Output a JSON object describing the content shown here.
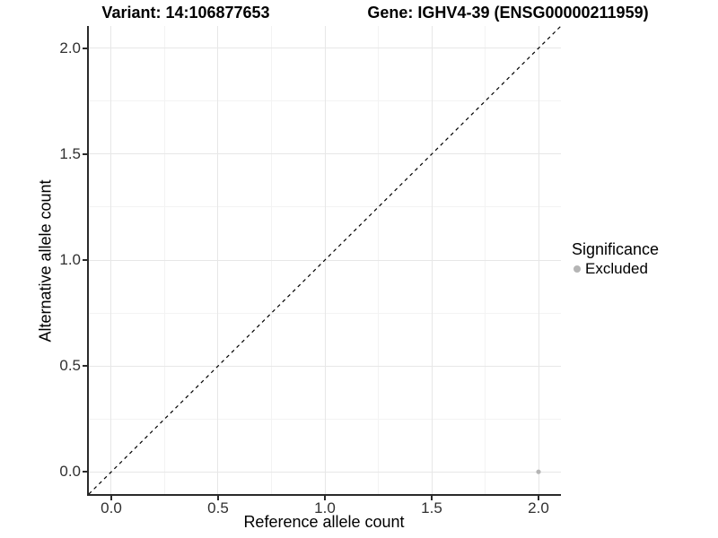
{
  "header": {
    "variant_title": "Variant: 14:106877653",
    "gene_title": "Gene: IGHV4-39 (ENSG00000211959)"
  },
  "axes": {
    "x": {
      "title": "Reference allele count",
      "tick_labels": [
        "0.0",
        "0.5",
        "1.0",
        "1.5",
        "2.0"
      ],
      "tick_values": [
        0,
        0.5,
        1,
        1.5,
        2
      ],
      "lim": [
        -0.105,
        2.105
      ]
    },
    "y": {
      "title": "Alternative allele count",
      "tick_labels": [
        "0.0",
        "0.5",
        "1.0",
        "1.5",
        "2.0"
      ],
      "tick_values": [
        0,
        0.5,
        1,
        1.5,
        2
      ],
      "lim": [
        -0.105,
        2.105
      ]
    }
  },
  "legend": {
    "title": "Significance",
    "items": [
      {
        "label": "Excluded",
        "color": "#b5b5b5",
        "marker": "circle"
      }
    ]
  },
  "colors": {
    "background": "#ffffff",
    "grid_major": "#e7e7e7",
    "grid_minor": "#f3f3f3",
    "axis_line": "#2a2a2a",
    "tick_text": "#303030",
    "reference_line": "#000000"
  },
  "chart_data": {
    "type": "scatter",
    "title_left": "Variant: 14:106877653",
    "title_right": "Gene: IGHV4-39 (ENSG00000211959)",
    "xlabel": "Reference allele count",
    "ylabel": "Alternative allele count",
    "xlim": [
      -0.105,
      2.105
    ],
    "ylim": [
      -0.105,
      2.105
    ],
    "x_ticks": [
      0,
      0.5,
      1,
      1.5,
      2
    ],
    "y_ticks": [
      0,
      0.5,
      1,
      1.5,
      2
    ],
    "grid": "major+minor",
    "legend_position": "right",
    "legend_title": "Significance",
    "series": [
      {
        "name": "Excluded",
        "type": "scatter",
        "color": "#b5b5b5",
        "points": [
          {
            "x": 2.0,
            "y": 0.0
          }
        ]
      }
    ],
    "reference_line": {
      "kind": "identity y=x",
      "slope": 1,
      "intercept": 0,
      "style": "dashed",
      "color": "#000000"
    }
  }
}
